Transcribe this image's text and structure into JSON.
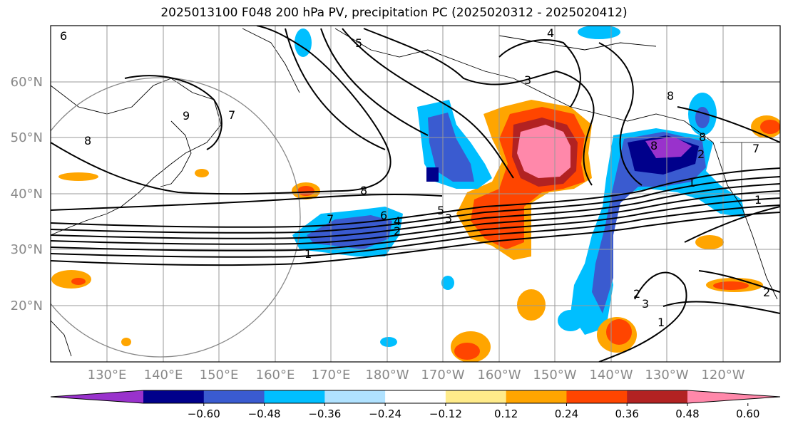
{
  "title": "2025013100 F048 200 hPa PV, precipitation PC (2025020312 - 2025020412)",
  "lat_labels": [
    "60°N",
    "50°N",
    "40°N",
    "30°N",
    "20°N"
  ],
  "lon_labels": [
    "130°E",
    "140°E",
    "150°E",
    "160°E",
    "170°E",
    "180°W",
    "170°W",
    "160°W",
    "150°W",
    "140°W",
    "130°W",
    "120°W"
  ],
  "colorbar": {
    "colors": [
      "#9932cc",
      "#00008b",
      "#3a5bd0",
      "#00bfff",
      "#b0e2ff",
      "#ffffff",
      "#ffeb8a",
      "#ffa500",
      "#ff4500",
      "#b22222",
      "#ff88aa"
    ],
    "tick_labels": [
      "−0.60",
      "−0.48",
      "−0.36",
      "−0.24",
      "−0.12",
      "0.12",
      "0.24",
      "0.36",
      "0.48",
      "0.60"
    ]
  },
  "pv_contour_labels": [
    "1",
    "2",
    "3",
    "4",
    "5",
    "6",
    "7",
    "8",
    "8",
    "7",
    "6",
    "5",
    "4",
    "3",
    "2",
    "1",
    "9",
    "8",
    "1",
    "2",
    "3",
    "2",
    "1",
    "7",
    "8",
    "8"
  ]
}
